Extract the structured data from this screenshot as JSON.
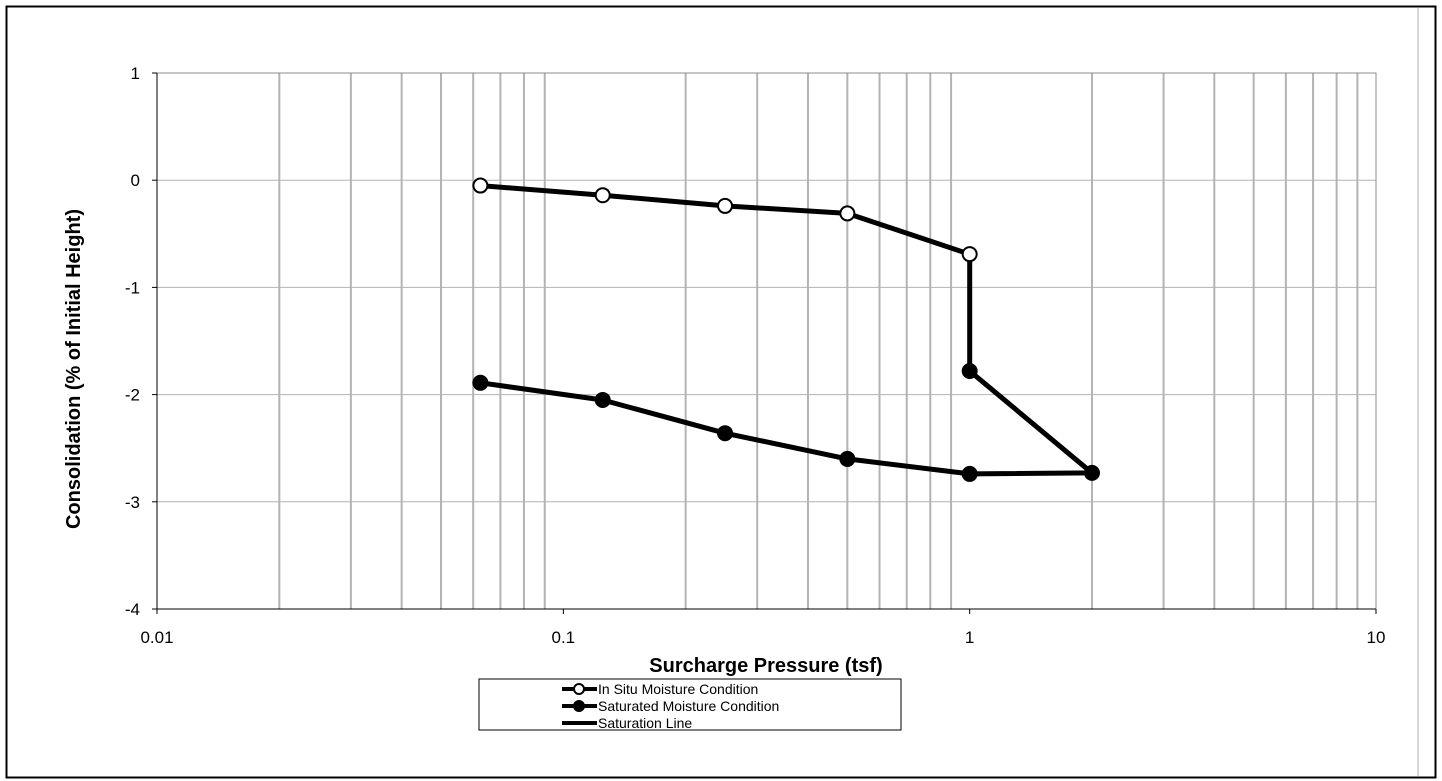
{
  "chart_data": {
    "type": "line",
    "title": "",
    "xlabel": "Surcharge Pressure (tsf)",
    "ylabel": "Consolidation  (% of Initial  Height)",
    "x_scale": "log",
    "xlim": [
      0.01,
      10
    ],
    "ylim": [
      -4,
      1
    ],
    "x_ticks": [
      "0.01",
      "0.1",
      "1",
      "10"
    ],
    "y_ticks": [
      "1",
      "0",
      "-1",
      "-2",
      "-3",
      "-4"
    ],
    "grid": true,
    "legend_position": "bottom",
    "series": [
      {
        "name": "In Situ Moisture Condition",
        "marker": "open-circle",
        "color": "#000000",
        "x": [
          0.0625,
          0.125,
          0.25,
          0.5,
          1.0
        ],
        "y": [
          -0.05,
          -0.14,
          -0.24,
          -0.31,
          -0.69
        ]
      },
      {
        "name": "Saturated Moisture Condition",
        "marker": "filled-circle",
        "color": "#000000",
        "x": [
          1.0,
          2.0,
          1.0,
          0.5,
          0.25,
          0.125,
          0.0625
        ],
        "y": [
          -1.78,
          -2.73,
          -2.74,
          -2.6,
          -2.36,
          -2.05,
          -1.89
        ]
      },
      {
        "name": "Saturation Line",
        "marker": "none",
        "color": "#000000",
        "x": [
          1.0,
          1.0
        ],
        "y": [
          -0.69,
          -1.78
        ]
      }
    ]
  }
}
